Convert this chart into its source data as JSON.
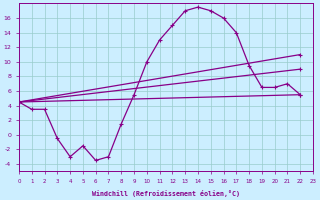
{
  "xlabel": "Windchill (Refroidissement éolien,°C)",
  "background_color": "#cceeff",
  "line_color": "#880088",
  "grid_color": "#99cccc",
  "y_main": [
    4.5,
    3.5,
    3.5,
    -0.5,
    -3.0,
    -1.5,
    -3.5,
    -3.0,
    1.5,
    5.5,
    10.0,
    13.0,
    15.0,
    17.0,
    17.5,
    17.0,
    16.0,
    14.0,
    9.5,
    6.5,
    6.5,
    7.0,
    5.5
  ],
  "line1_start": 4.5,
  "line1_end": 11.0,
  "line2_start": 4.5,
  "line2_end": 9.0,
  "line3_start": 4.5,
  "line3_end": 5.5,
  "ylim": [
    -5,
    18
  ],
  "yticks": [
    -4,
    -2,
    0,
    2,
    4,
    6,
    8,
    10,
    12,
    14,
    16
  ],
  "xlim": [
    0,
    23
  ],
  "n_hours": 23
}
